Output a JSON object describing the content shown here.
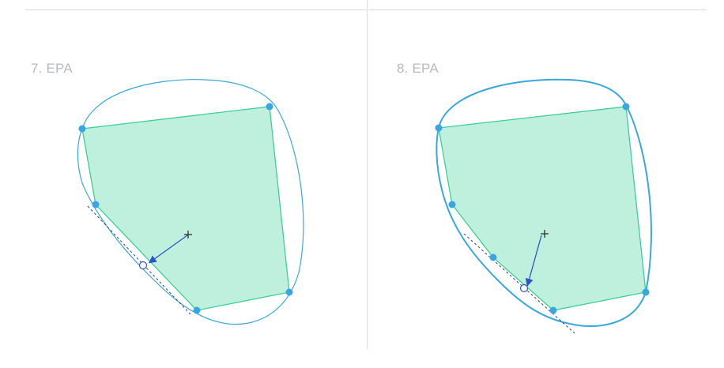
{
  "panels": [
    {
      "id": "step-7",
      "title": "7. EPA"
    },
    {
      "id": "step-8",
      "title": "8. EPA"
    }
  ],
  "colors": {
    "polygon_fill": "#bff0de",
    "polygon_edge": "#3ccf98",
    "support_curve": "#38a8dd",
    "vertex": "#3aa6e0",
    "arrow": "#2f55c6",
    "support_line": "#33407a",
    "origin_marker": "#222222",
    "closest_point_marker": "#2f55c6",
    "divider": "#dadde0",
    "title_text": "#b6bbc0"
  }
}
